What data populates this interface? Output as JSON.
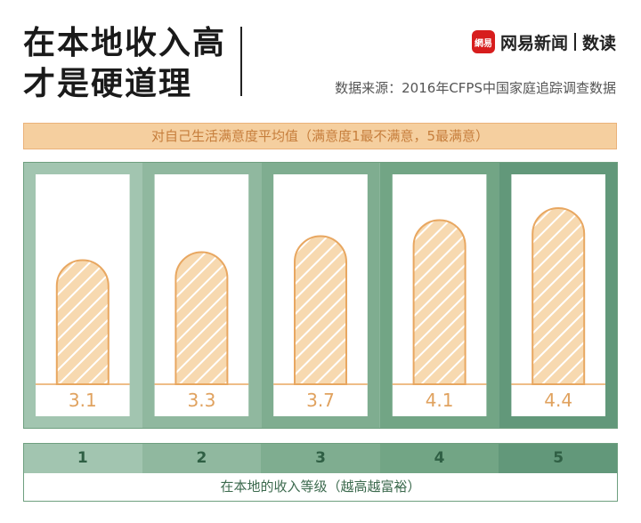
{
  "header": {
    "title_line1": "在本地收入高",
    "title_line2": "才是硬道理",
    "brand_logo": "網易",
    "brand_name": "网易新闻",
    "brand_sub": "数读",
    "source": "数据来源：2016年CFPS中国家庭追踪调查数据"
  },
  "chart_data": {
    "type": "bar",
    "title": "对自己生活满意度平均值（满意度1最不满意，5最满意）",
    "xlabel": "在本地的收入等级（越高越富裕）",
    "ylabel": "",
    "categories": [
      "1",
      "2",
      "3",
      "4",
      "5"
    ],
    "values": [
      3.1,
      3.3,
      3.7,
      4.1,
      4.4
    ],
    "value_labels": [
      "3.1",
      "3.3",
      "3.7",
      "4.1",
      "4.4"
    ],
    "ylim": [
      0,
      5
    ],
    "grid": false,
    "legend": "none",
    "colors": {
      "bar_fill": "#f7d9b0",
      "bar_stroke": "#e8a761",
      "label": "#e0a25f",
      "column_bg": [
        "#a2c5b0",
        "#90b89f",
        "#7fad90",
        "#72a585",
        "#62987a"
      ],
      "category_bg": [
        "#a2c5b0",
        "#90b89f",
        "#7fad90",
        "#72a585",
        "#62987a"
      ]
    }
  }
}
